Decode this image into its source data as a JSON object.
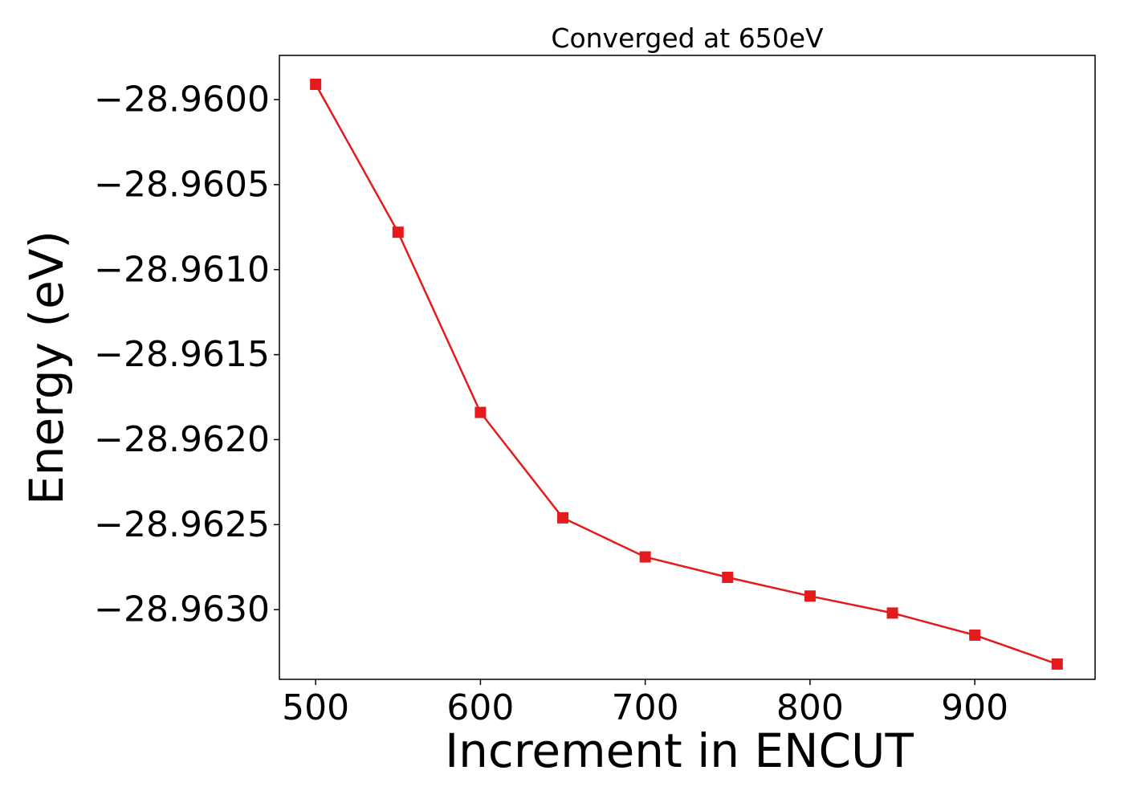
{
  "chart_data": {
    "type": "line",
    "title": "Converged at 650eV",
    "xlabel": "Increment in ENCUT",
    "ylabel": "Energy (eV)",
    "x": [
      500,
      550,
      600,
      650,
      700,
      750,
      800,
      850,
      900,
      950
    ],
    "series": [
      {
        "values": [
          -28.95991,
          -28.96078,
          -28.96184,
          -28.96246,
          -28.96269,
          -28.96281,
          -28.96292,
          -28.96302,
          -28.96315,
          -28.96332
        ],
        "color": "#e41a1c",
        "marker": "square"
      }
    ],
    "xlim": [
      478,
      973
    ],
    "ylim": [
      -28.96341,
      -28.95974
    ],
    "xticks": [
      500,
      600,
      700,
      800,
      900
    ],
    "xtick_labels": [
      "500",
      "600",
      "700",
      "800",
      "900"
    ],
    "yticks": [
      -28.96,
      -28.9605,
      -28.961,
      -28.9615,
      -28.962,
      -28.9625,
      -28.963
    ],
    "ytick_labels": [
      "−28.9600",
      "−28.9605",
      "−28.9610",
      "−28.9615",
      "−28.9620",
      "−28.9625",
      "−28.9630"
    ],
    "grid": false,
    "legend": false
  }
}
